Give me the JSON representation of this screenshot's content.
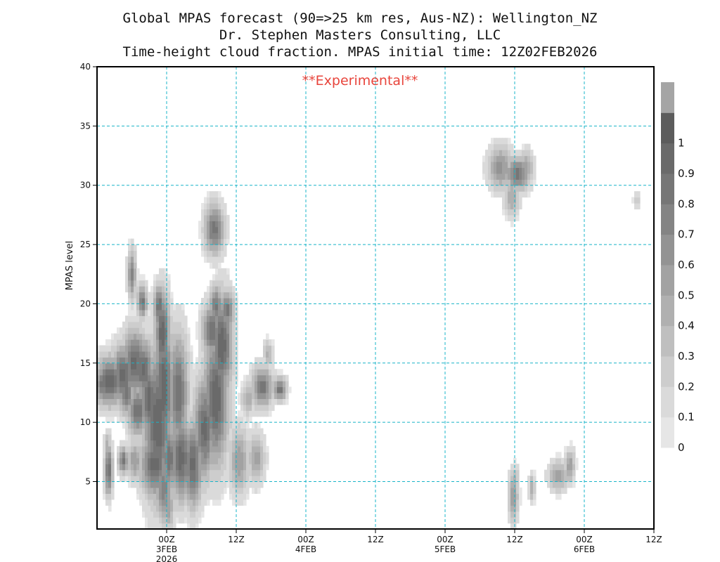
{
  "chart_data": {
    "type": "heatmap",
    "title_lines": [
      "Global MPAS forecast (90=>25 km res, Aus-NZ): Wellington_NZ",
      "Dr. Stephen Masters Consulting, LLC",
      "Time-height cloud fraction.   MPAS initial time: 12Z02FEB2026"
    ],
    "annotation": "**Experimental**",
    "ylabel": "MPAS level",
    "x_range_hours": [
      0,
      96
    ],
    "x_ticks": [
      {
        "hour": 12,
        "lines": [
          "00Z",
          "3FEB",
          "2026"
        ]
      },
      {
        "hour": 24,
        "lines": [
          "12Z"
        ]
      },
      {
        "hour": 36,
        "lines": [
          "00Z",
          "4FEB"
        ]
      },
      {
        "hour": 48,
        "lines": [
          "12Z"
        ]
      },
      {
        "hour": 60,
        "lines": [
          "00Z",
          "5FEB"
        ]
      },
      {
        "hour": 72,
        "lines": [
          "12Z"
        ]
      },
      {
        "hour": 84,
        "lines": [
          "00Z",
          "6FEB"
        ]
      },
      {
        "hour": 96,
        "lines": [
          "12Z"
        ]
      }
    ],
    "ylim": [
      1,
      40
    ],
    "y_ticks": [
      5,
      10,
      15,
      20,
      25,
      30,
      35,
      40
    ],
    "grid": true,
    "colorbar_levels": [
      "0",
      "0.1",
      "0.2",
      "0.3",
      "0.4",
      "0.5",
      "0.6",
      "0.7",
      "0.8",
      "0.9",
      "1"
    ],
    "colorbar_colors": [
      "#e6e6e6",
      "#dadada",
      "#cdcdcd",
      "#bfbfbf",
      "#b0b0b0",
      "#a2a2a2",
      "#939393",
      "#848484",
      "#767676",
      "#6a6a6a",
      "#5c5c5c",
      "#a5a5a5"
    ],
    "cloud_features": [
      {
        "t": 1.0,
        "level": 13.2,
        "st": 1.0,
        "sl": 1.2,
        "frac": 0.85
      },
      {
        "t": 2.2,
        "level": 13.5,
        "st": 1.8,
        "sl": 1.5,
        "frac": 0.95
      },
      {
        "t": 4.5,
        "level": 14.0,
        "st": 1.5,
        "sl": 1.8,
        "frac": 0.95
      },
      {
        "t": 6.5,
        "level": 15.0,
        "st": 1.5,
        "sl": 2.0,
        "frac": 0.95
      },
      {
        "t": 8.0,
        "level": 14.5,
        "st": 1.2,
        "sl": 1.8,
        "frac": 0.95
      },
      {
        "t": 5.0,
        "level": 12.5,
        "st": 1.0,
        "sl": 1.3,
        "frac": 0.85
      },
      {
        "t": 7.0,
        "level": 11.0,
        "st": 1.2,
        "sl": 1.5,
        "frac": 0.9
      },
      {
        "t": 9.0,
        "level": 12.0,
        "st": 1.2,
        "sl": 2.5,
        "frac": 0.95
      },
      {
        "t": 10.5,
        "level": 10.0,
        "st": 1.8,
        "sl": 4.5,
        "frac": 1.0
      },
      {
        "t": 11.5,
        "level": 13.0,
        "st": 1.2,
        "sl": 4.0,
        "frac": 1.0
      },
      {
        "t": 11.3,
        "level": 17.5,
        "st": 0.9,
        "sl": 2.5,
        "frac": 1.0
      },
      {
        "t": 10.7,
        "level": 19.8,
        "st": 0.7,
        "sl": 1.3,
        "frac": 0.9
      },
      {
        "t": 10.0,
        "level": 6.5,
        "st": 1.8,
        "sl": 2.0,
        "frac": 0.95
      },
      {
        "t": 11.5,
        "level": 4.5,
        "st": 1.0,
        "sl": 2.0,
        "frac": 0.8
      },
      {
        "t": 12.2,
        "level": 3.0,
        "st": 0.8,
        "sl": 1.5,
        "frac": 0.6
      },
      {
        "t": 12.5,
        "level": 7.0,
        "st": 1.0,
        "sl": 2.0,
        "frac": 0.9
      },
      {
        "t": 14.5,
        "level": 7.0,
        "st": 1.5,
        "sl": 2.5,
        "frac": 0.95
      },
      {
        "t": 14.0,
        "level": 12.5,
        "st": 1.2,
        "sl": 3.5,
        "frac": 0.9
      },
      {
        "t": 16.5,
        "level": 6.5,
        "st": 1.2,
        "sl": 2.5,
        "frac": 0.95
      },
      {
        "t": 18.5,
        "level": 9.5,
        "st": 1.3,
        "sl": 3.0,
        "frac": 0.95
      },
      {
        "t": 20.5,
        "level": 12.0,
        "st": 1.5,
        "sl": 4.0,
        "frac": 1.0
      },
      {
        "t": 21.5,
        "level": 16.5,
        "st": 1.3,
        "sl": 3.0,
        "frac": 1.0
      },
      {
        "t": 19.8,
        "level": 17.8,
        "st": 1.2,
        "sl": 1.6,
        "frac": 0.9
      },
      {
        "t": 20.5,
        "level": 19.8,
        "st": 0.8,
        "sl": 1.2,
        "frac": 0.85
      },
      {
        "t": 22.5,
        "level": 19.5,
        "st": 0.8,
        "sl": 1.2,
        "frac": 0.85
      },
      {
        "t": 2.0,
        "level": 6.0,
        "st": 0.5,
        "sl": 1.5,
        "frac": 0.95
      },
      {
        "t": 1.8,
        "level": 7.8,
        "st": 0.4,
        "sl": 1.0,
        "frac": 0.5
      },
      {
        "t": 4.5,
        "level": 6.8,
        "st": 0.6,
        "sl": 0.8,
        "frac": 0.85
      },
      {
        "t": 6.5,
        "level": 6.8,
        "st": 1.0,
        "sl": 1.2,
        "frac": 0.6
      },
      {
        "t": 6.0,
        "level": 22.5,
        "st": 0.5,
        "sl": 1.5,
        "frac": 0.75
      },
      {
        "t": 7.8,
        "level": 20.2,
        "st": 0.6,
        "sl": 1.0,
        "frac": 0.85
      },
      {
        "t": 20.2,
        "level": 26.3,
        "st": 1.2,
        "sl": 1.5,
        "frac": 0.85
      },
      {
        "t": 24.5,
        "level": 6.8,
        "st": 1.2,
        "sl": 2.0,
        "frac": 0.6
      },
      {
        "t": 27.5,
        "level": 7.0,
        "st": 1.0,
        "sl": 1.5,
        "frac": 0.55
      },
      {
        "t": 28.5,
        "level": 13.0,
        "st": 1.3,
        "sl": 1.2,
        "frac": 0.85
      },
      {
        "t": 29.5,
        "level": 15.8,
        "st": 0.6,
        "sl": 0.8,
        "frac": 0.45
      },
      {
        "t": 26.0,
        "level": 12.0,
        "st": 0.8,
        "sl": 1.0,
        "frac": 0.5
      },
      {
        "t": 31.5,
        "level": 12.8,
        "st": 0.8,
        "sl": 0.7,
        "frac": 0.85
      },
      {
        "t": 69.5,
        "level": 31.5,
        "st": 1.5,
        "sl": 1.3,
        "frac": 0.65
      },
      {
        "t": 72.5,
        "level": 31.0,
        "st": 1.5,
        "sl": 1.0,
        "frac": 0.85
      },
      {
        "t": 71.5,
        "level": 29.0,
        "st": 0.9,
        "sl": 1.2,
        "frac": 0.5
      },
      {
        "t": 74.0,
        "level": 31.5,
        "st": 0.9,
        "sl": 1.0,
        "frac": 0.55
      },
      {
        "t": 71.8,
        "level": 3.8,
        "st": 0.6,
        "sl": 1.5,
        "frac": 0.6
      },
      {
        "t": 72.0,
        "level": 5.2,
        "st": 0.5,
        "sl": 0.8,
        "frac": 0.45
      },
      {
        "t": 75.0,
        "level": 4.5,
        "st": 0.4,
        "sl": 0.8,
        "frac": 0.5
      },
      {
        "t": 79.5,
        "level": 5.5,
        "st": 1.2,
        "sl": 0.9,
        "frac": 0.55
      },
      {
        "t": 81.5,
        "level": 6.3,
        "st": 0.6,
        "sl": 1.0,
        "frac": 0.6
      },
      {
        "t": 93.0,
        "level": 28.8,
        "st": 0.4,
        "sl": 0.5,
        "frac": 0.3
      }
    ]
  }
}
